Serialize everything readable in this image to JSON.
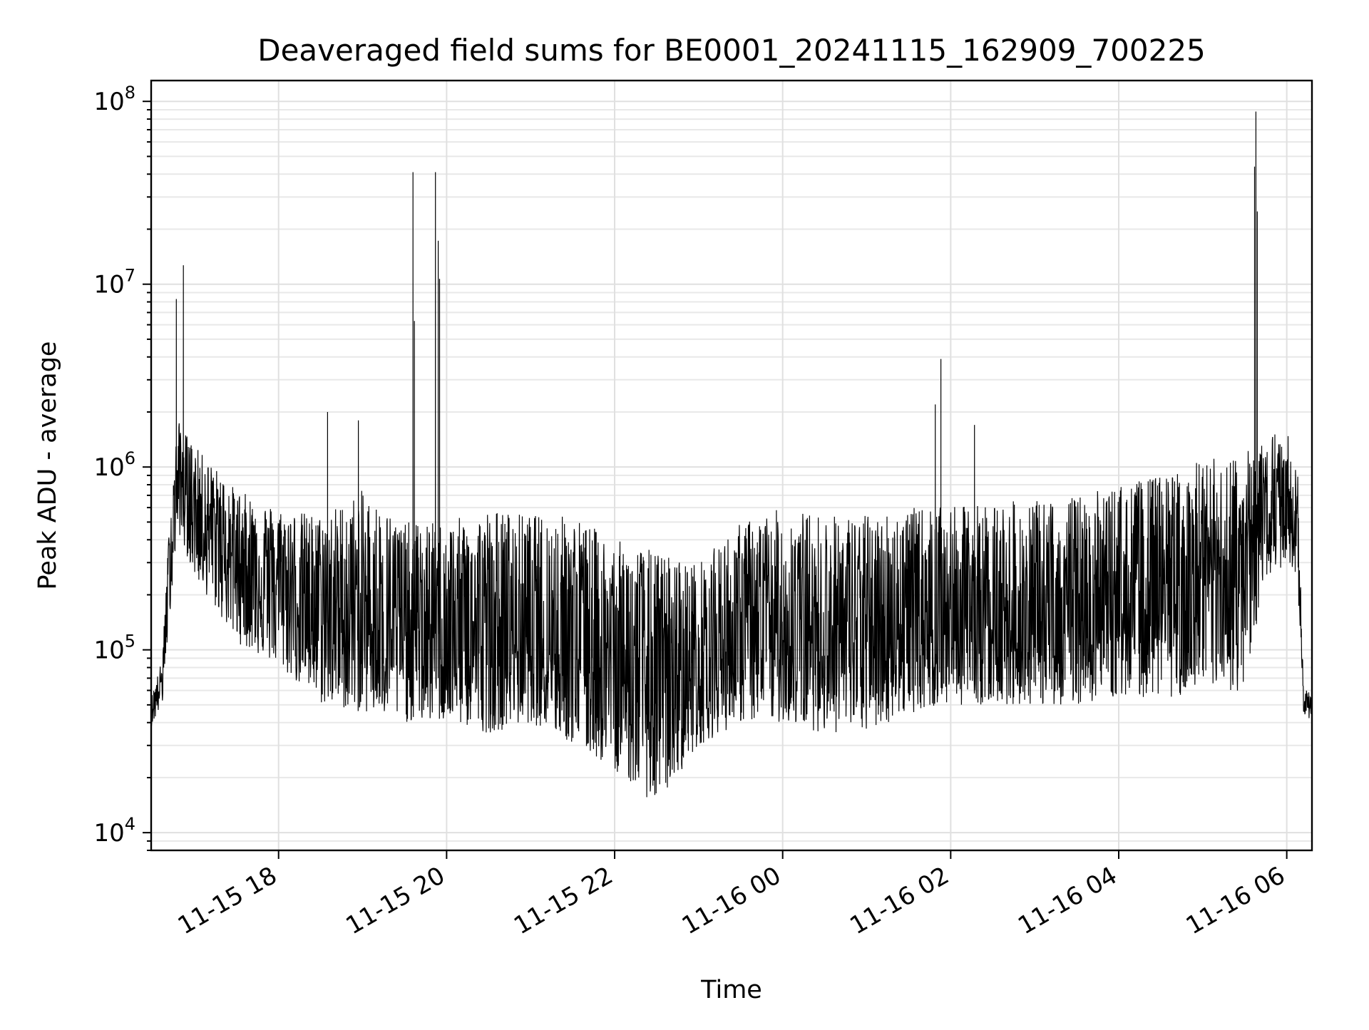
{
  "chart_data": {
    "type": "line",
    "title": "Deaveraged field sums for BE0001_20241115_162909_700225",
    "xlabel": "Time",
    "ylabel": "Peak ADU - average",
    "x_type": "datetime",
    "xlim": [
      "2024-11-15 16:29",
      "2024-11-16 06:18"
    ],
    "x_ticks": [
      {
        "value": "2024-11-15 18:00",
        "label": "11-15 18"
      },
      {
        "value": "2024-11-15 20:00",
        "label": "11-15 20"
      },
      {
        "value": "2024-11-15 22:00",
        "label": "11-15 22"
      },
      {
        "value": "2024-11-16 00:00",
        "label": "11-16 00"
      },
      {
        "value": "2024-11-16 02:00",
        "label": "11-16 02"
      },
      {
        "value": "2024-11-16 04:00",
        "label": "11-16 04"
      },
      {
        "value": "2024-11-16 06:00",
        "label": "11-16 06"
      }
    ],
    "y_scale": "log",
    "ylim": [
      8000,
      130000000
    ],
    "y_ticks": [
      {
        "value": 10000,
        "base": "10",
        "exp": "4"
      },
      {
        "value": 100000,
        "base": "10",
        "exp": "5"
      },
      {
        "value": 1000000,
        "base": "10",
        "exp": "6"
      },
      {
        "value": 10000000,
        "base": "10",
        "exp": "7"
      },
      {
        "value": 100000000,
        "base": "10",
        "exp": "8"
      }
    ],
    "grid": true,
    "series_color": "#000000",
    "spikes": [
      {
        "x": "2024-11-15 16:47",
        "y": 8300000
      },
      {
        "x": "2024-11-15 16:52",
        "y": 12700000
      },
      {
        "x": "2024-11-15 18:35",
        "y": 2000000
      },
      {
        "x": "2024-11-15 18:57",
        "y": 1800000
      },
      {
        "x": "2024-11-15 19:36",
        "y": 41000000
      },
      {
        "x": "2024-11-15 19:37",
        "y": 6300000
      },
      {
        "x": "2024-11-15 19:52",
        "y": 41000000
      },
      {
        "x": "2024-11-15 19:54",
        "y": 17300000
      },
      {
        "x": "2024-11-15 19:55",
        "y": 10700000
      },
      {
        "x": "2024-11-16 01:49",
        "y": 2200000
      },
      {
        "x": "2024-11-16 01:53",
        "y": 3900000
      },
      {
        "x": "2024-11-16 02:17",
        "y": 1700000
      },
      {
        "x": "2024-11-16 05:37",
        "y": 44000000
      },
      {
        "x": "2024-11-16 05:38",
        "y": 88000000
      },
      {
        "x": "2024-11-16 05:39",
        "y": 25000000
      }
    ],
    "envelope": [
      {
        "x": "2024-11-15 16:29",
        "low": 38000,
        "mid": 47000,
        "high": 55000
      },
      {
        "x": "2024-11-15 16:37",
        "low": 50000,
        "mid": 70000,
        "high": 90000
      },
      {
        "x": "2024-11-15 16:42",
        "low": 150000,
        "mid": 300000,
        "high": 500000
      },
      {
        "x": "2024-11-15 16:48",
        "low": 450000,
        "mid": 900000,
        "high": 1800000
      },
      {
        "x": "2024-11-15 17:00",
        "low": 250000,
        "mid": 600000,
        "high": 1300000
      },
      {
        "x": "2024-11-15 17:30",
        "low": 110000,
        "mid": 320000,
        "high": 750000
      },
      {
        "x": "2024-11-15 18:00",
        "low": 80000,
        "mid": 240000,
        "high": 600000
      },
      {
        "x": "2024-11-15 18:30",
        "low": 50000,
        "mid": 160000,
        "high": 550000
      },
      {
        "x": "2024-11-15 19:00",
        "low": 45000,
        "mid": 140000,
        "high": 750000
      },
      {
        "x": "2024-11-15 19:30",
        "low": 40000,
        "mid": 130000,
        "high": 500000
      },
      {
        "x": "2024-11-15 20:00",
        "low": 40000,
        "mid": 120000,
        "high": 500000
      },
      {
        "x": "2024-11-15 20:30",
        "low": 35000,
        "mid": 110000,
        "high": 600000
      },
      {
        "x": "2024-11-15 21:00",
        "low": 40000,
        "mid": 120000,
        "high": 550000
      },
      {
        "x": "2024-11-15 21:30",
        "low": 30000,
        "mid": 110000,
        "high": 550000
      },
      {
        "x": "2024-11-15 22:00",
        "low": 22000,
        "mid": 80000,
        "high": 400000
      },
      {
        "x": "2024-11-15 22:30",
        "low": 14000,
        "mid": 55000,
        "high": 350000
      },
      {
        "x": "2024-11-15 23:00",
        "low": 30000,
        "mid": 80000,
        "high": 300000
      },
      {
        "x": "2024-11-15 23:30",
        "low": 40000,
        "mid": 120000,
        "high": 500000
      },
      {
        "x": "2024-11-16 00:00",
        "low": 40000,
        "mid": 120000,
        "high": 600000
      },
      {
        "x": "2024-11-16 00:30",
        "low": 35000,
        "mid": 120000,
        "high": 550000
      },
      {
        "x": "2024-11-16 01:00",
        "low": 35000,
        "mid": 120000,
        "high": 550000
      },
      {
        "x": "2024-11-16 01:30",
        "low": 45000,
        "mid": 140000,
        "high": 600000
      },
      {
        "x": "2024-11-16 02:00",
        "low": 50000,
        "mid": 150000,
        "high": 600000
      },
      {
        "x": "2024-11-16 02:30",
        "low": 50000,
        "mid": 150000,
        "high": 650000
      },
      {
        "x": "2024-11-16 03:00",
        "low": 50000,
        "mid": 100000,
        "high": 650000
      },
      {
        "x": "2024-11-16 03:30",
        "low": 50000,
        "mid": 160000,
        "high": 700000
      },
      {
        "x": "2024-11-16 04:00",
        "low": 55000,
        "mid": 170000,
        "high": 800000
      },
      {
        "x": "2024-11-16 04:30",
        "low": 55000,
        "mid": 180000,
        "high": 900000
      },
      {
        "x": "2024-11-16 05:00",
        "low": 55000,
        "mid": 200000,
        "high": 1100000
      },
      {
        "x": "2024-11-16 05:30",
        "low": 60000,
        "mid": 250000,
        "high": 1200000
      },
      {
        "x": "2024-11-16 05:45",
        "low": 250000,
        "mid": 600000,
        "high": 1600000
      },
      {
        "x": "2024-11-16 06:03",
        "low": 300000,
        "mid": 650000,
        "high": 1500000
      },
      {
        "x": "2024-11-16 06:08",
        "low": 200000,
        "mid": 400000,
        "high": 900000
      },
      {
        "x": "2024-11-16 06:12",
        "low": 42000,
        "mid": 50000,
        "high": 60000
      },
      {
        "x": "2024-11-16 06:18",
        "low": 42000,
        "mid": 50000,
        "high": 60000
      }
    ]
  }
}
